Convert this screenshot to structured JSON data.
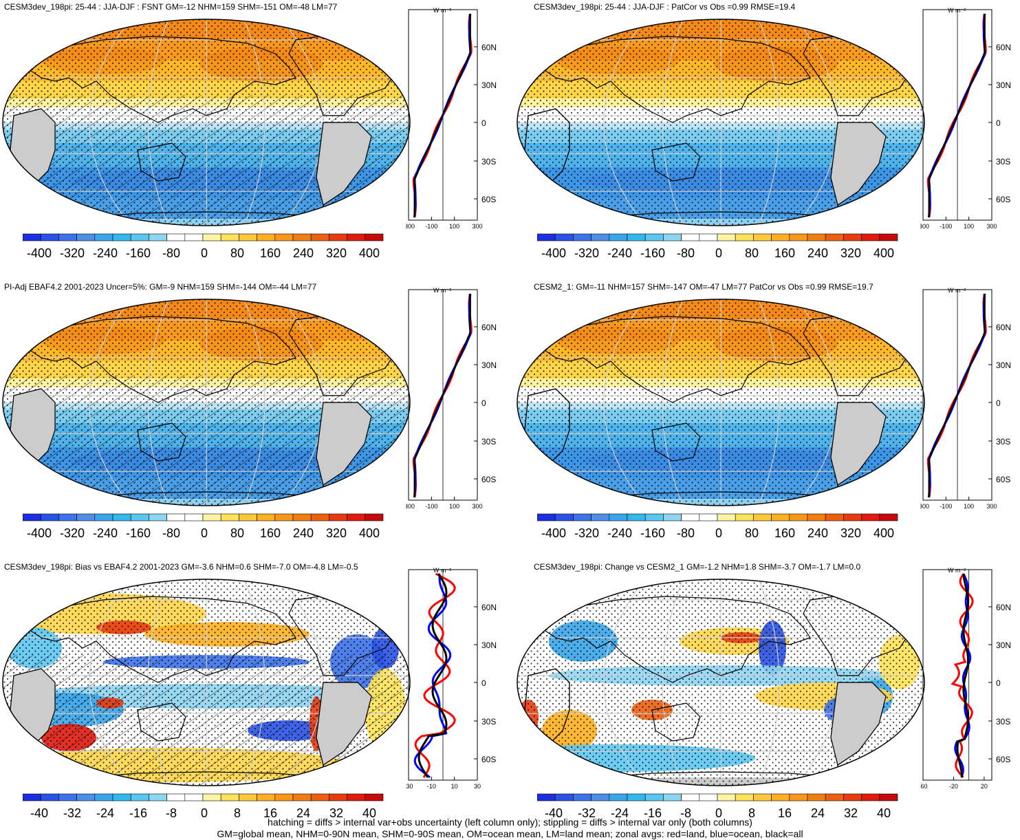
{
  "figure": {
    "footer": [
      "hatching = diffs > internal var+obs uncertainty (left column only); stippling = diffs > internal var only (both columns)",
      "GM=global mean, NHM=0-90N mean, SHM=0-90S mean, OM=ocean mean, LM=land mean; zonal avgs: red=land, blue=ocean, black=all"
    ]
  },
  "panels": [
    {
      "id": "p1",
      "title": "CESM3dev_198pi: 25-44 : JJA-DJF : FSNT GM=-12 NHM=159 SHM=-151 OM=-48 LM=77",
      "field": "abs",
      "hatch": true,
      "colorbar_labels": [
        "-400",
        "-320",
        "-240",
        "-160",
        "-80",
        "0",
        "80",
        "160",
        "240",
        "320",
        "400"
      ],
      "profile_unit": "W m⁻²",
      "profile_xticks": [
        "-300",
        "-100",
        "100",
        "300"
      ],
      "profile_xlim": [
        -300,
        300
      ],
      "lat_ticks": [
        "60N",
        "30N",
        "0",
        "30S",
        "60S"
      ]
    },
    {
      "id": "p2",
      "title": "CESM3dev_198pi: 25-44 : JJA-DJF : PatCor vs Obs =0.99 RMSE=19.4",
      "field": "abs",
      "hatch": false,
      "colorbar_labels": [
        "-400",
        "-320",
        "-240",
        "-160",
        "-80",
        "0",
        "80",
        "160",
        "240",
        "320",
        "400"
      ],
      "profile_unit": "W m⁻²",
      "profile_xticks": [
        "-300",
        "-100",
        "100",
        "300"
      ],
      "profile_xlim": [
        -300,
        300
      ],
      "lat_ticks": [
        "60N",
        "30N",
        "0",
        "30S",
        "60S"
      ]
    },
    {
      "id": "p3",
      "title": "PI-Adj EBAF4.2 2001-2023 Uncer=5%: GM=-9 NHM=159 SHM=-144 OM=-44 LM=77",
      "field": "abs",
      "hatch": true,
      "colorbar_labels": [
        "-400",
        "-320",
        "-240",
        "-160",
        "-80",
        "0",
        "80",
        "160",
        "240",
        "320",
        "400"
      ],
      "profile_unit": "W m⁻²",
      "profile_xticks": [
        "-300",
        "-100",
        "100",
        "300"
      ],
      "profile_xlim": [
        -300,
        300
      ],
      "lat_ticks": [
        "60N",
        "30N",
        "0",
        "30S",
        "60S"
      ]
    },
    {
      "id": "p4",
      "title": "CESM2_1: GM=-11 NHM=157 SHM=-147 OM=-47 LM=77 PatCor vs Obs =0.99 RMSE=19.7",
      "field": "abs",
      "hatch": false,
      "colorbar_labels": [
        "-400",
        "-320",
        "-240",
        "-160",
        "-80",
        "0",
        "80",
        "160",
        "240",
        "320",
        "400"
      ],
      "profile_unit": "W m⁻²",
      "profile_xticks": [
        "-300",
        "-100",
        "100",
        "300"
      ],
      "profile_xlim": [
        -300,
        300
      ],
      "lat_ticks": [
        "60N",
        "30N",
        "0",
        "30S",
        "60S"
      ]
    },
    {
      "id": "p5",
      "title": "CESM3dev_198pi: Bias vs EBAF4.2 2001-2023 GM=-3.6 NHM=0.6 SHM=-7.0 OM=-4.8 LM=-0.5",
      "field": "diff",
      "hatch": true,
      "colorbar_labels": [
        "-40",
        "-32",
        "-24",
        "-16",
        "-8",
        "0",
        "8",
        "16",
        "24",
        "32",
        "40"
      ],
      "profile_unit": "W m⁻²",
      "profile_xticks": [
        "-30",
        "-10",
        "10",
        "30"
      ],
      "profile_xlim": [
        -30,
        30
      ],
      "lat_ticks": [
        "60N",
        "30N",
        "0",
        "30S",
        "60S"
      ]
    },
    {
      "id": "p6",
      "title": "CESM3dev_198pi: Change vs CESM2_1 GM=-1.2 NHM=1.8 SHM=-3.7 OM=-1.7 LM=0.0",
      "field": "diff",
      "hatch": false,
      "colorbar_labels": [
        "-40",
        "-32",
        "-24",
        "-16",
        "-8",
        "0",
        "8",
        "16",
        "24",
        "32",
        "40"
      ],
      "profile_unit": "W m⁻²",
      "profile_xticks": [
        "-60",
        "-20",
        "20"
      ],
      "profile_xlim": [
        -60,
        30
      ],
      "lat_ticks": [
        "60N",
        "30N",
        "0",
        "30S",
        "60S"
      ]
    }
  ],
  "colors": {
    "palette": [
      "#1b2ee0",
      "#2a52e6",
      "#3d72ea",
      "#4f8fe6",
      "#3aa5ea",
      "#33b8ee",
      "#5cc7f0",
      "#8ed5f2",
      "#ffffff",
      "#ffffff",
      "#fff4a6",
      "#ffe25a",
      "#ffc83a",
      "#ffb020",
      "#f99818",
      "#f07f10",
      "#ec6010",
      "#e83c10",
      "#e01a0e",
      "#c40a0a"
    ],
    "land_line": "#000000",
    "ocean_profile": "#0000ff",
    "land_profile": "#ff0000",
    "all_profile": "#000000",
    "missing": "#cccccc"
  }
}
